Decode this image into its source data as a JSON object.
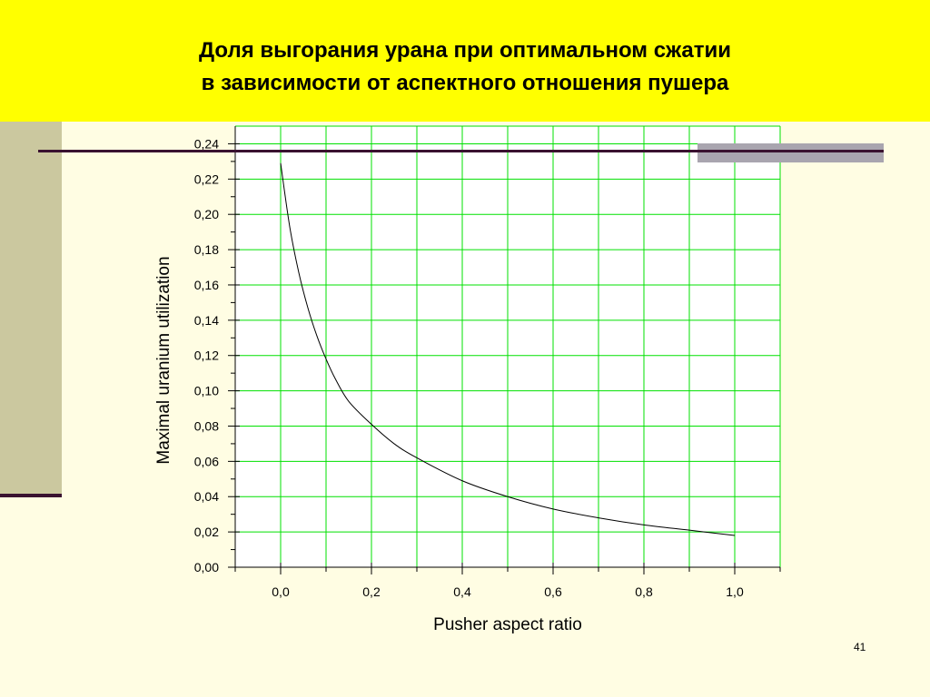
{
  "slide": {
    "title_line1": "Доля выгорания урана при оптимальном сжатии",
    "title_line2": "в зависимости от аспектного отношения пушера",
    "page_number": "41"
  },
  "colors": {
    "title_band": "#FFFF00",
    "background": "#FFFDE3",
    "side_bar": "#CBC89F",
    "rule": "#3A1230",
    "gray_block": "#A9A5AF",
    "grid": "#00E000",
    "curve": "#000000"
  },
  "chart_data": {
    "type": "line",
    "xlabel": "Pusher aspect ratio",
    "ylabel": "Maximal uranium utilization",
    "xlim": [
      -0.1,
      1.1
    ],
    "ylim": [
      0.0,
      0.25
    ],
    "grid": true,
    "xticks": [
      "0,0",
      "0,2",
      "0,4",
      "0,6",
      "0,8",
      "1,0"
    ],
    "yticks": [
      "0,00",
      "0,02",
      "0,04",
      "0,06",
      "0,08",
      "0,10",
      "0,12",
      "0,14",
      "0,16",
      "0,18",
      "0,20",
      "0,22",
      "0,24"
    ],
    "series": [
      {
        "x": [
          0.0,
          0.02,
          0.04,
          0.06,
          0.08,
          0.1,
          0.12,
          0.15,
          0.2,
          0.25,
          0.3,
          0.4,
          0.5,
          0.6,
          0.7,
          0.8,
          0.9,
          1.0
        ],
        "y": [
          0.229,
          0.193,
          0.167,
          0.147,
          0.131,
          0.118,
          0.107,
          0.094,
          0.081,
          0.07,
          0.062,
          0.049,
          0.04,
          0.033,
          0.028,
          0.024,
          0.021,
          0.018
        ]
      }
    ]
  }
}
